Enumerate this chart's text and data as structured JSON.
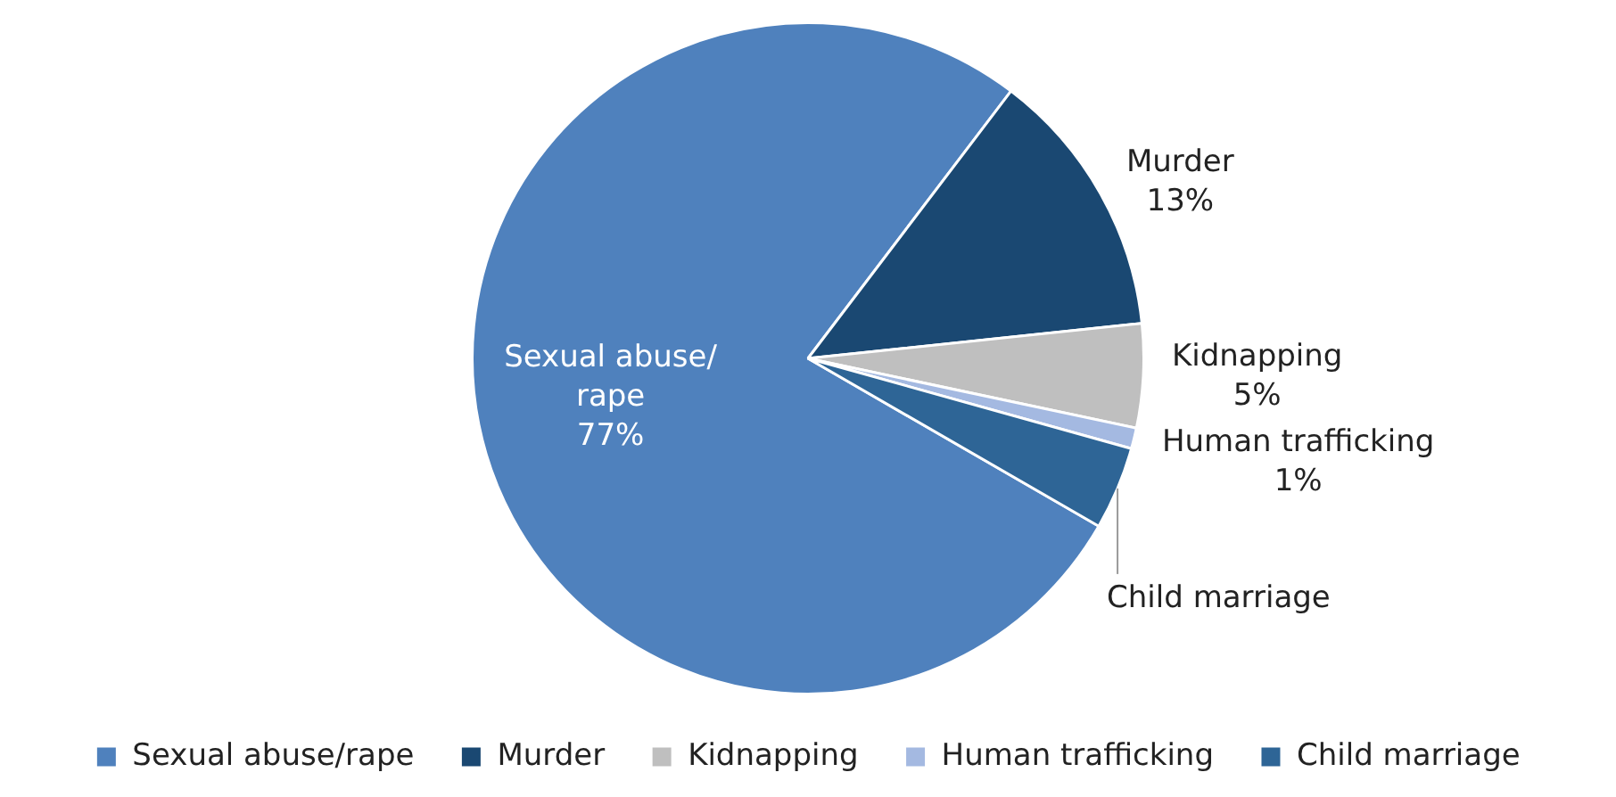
{
  "chart_data": {
    "type": "pie",
    "categories": [
      "Sexual abuse/rape",
      "Murder",
      "Kidnapping",
      "Human trafficking",
      "Child marriage"
    ],
    "values": [
      77,
      13,
      5,
      1,
      4
    ],
    "value_labels": [
      "77%",
      "13%",
      "5%",
      "1%",
      null
    ],
    "colors": [
      "#4f81bd",
      "#1a4872",
      "#bfbfbf",
      "#a4b9e1",
      "#2e6596"
    ],
    "legend": "bottom"
  }
}
